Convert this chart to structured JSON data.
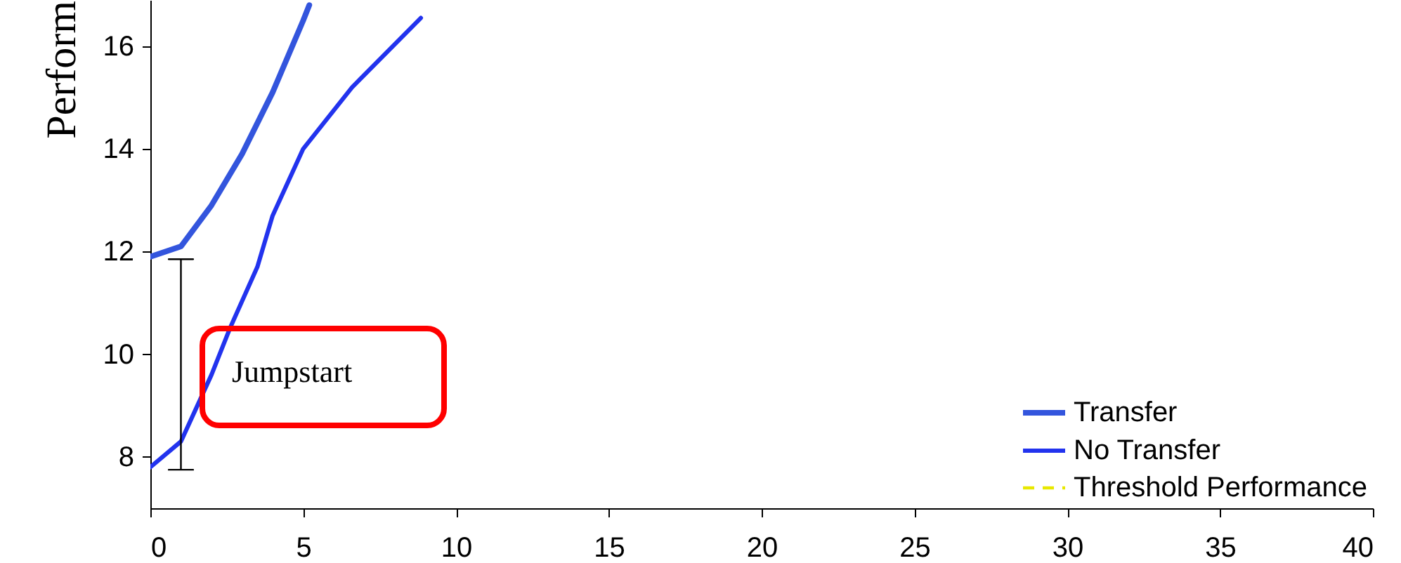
{
  "chart_data": {
    "type": "line",
    "ylabel": "Perform",
    "xlim": [
      0,
      40
    ],
    "xticks": [
      0,
      5,
      10,
      15,
      20,
      25,
      30,
      35,
      40
    ],
    "ylim": [
      7,
      16.9
    ],
    "yticks": [
      8,
      10,
      12,
      14,
      16
    ],
    "grid": false,
    "legend": "bottom right",
    "marker": "none",
    "annotations": [
      "Jumpstart"
    ],
    "series": [
      {
        "name": "Transfer",
        "color": "#3355dd",
        "line_style": "solid",
        "x": [
          0,
          1,
          2,
          3,
          4,
          5,
          5.2
        ],
        "values": [
          11.9,
          12.1,
          12.9,
          13.9,
          15.1,
          16.5,
          16.8
        ]
      },
      {
        "name": "No Transfer",
        "color": "#2233ee",
        "line_style": "solid",
        "x": [
          0,
          1,
          2,
          2.6,
          3.5,
          4,
          5,
          6.6,
          8.85
        ],
        "values": [
          7.8,
          8.3,
          9.6,
          10.5,
          11.7,
          12.7,
          14.0,
          15.2,
          16.55
        ]
      },
      {
        "name": "Threshold Performance",
        "color": "#e8e800",
        "line_style": "dashed"
      },
      {
        "color": "#000000",
        "line_style": "solid",
        "x": [
          0.6,
          1.4,
          1,
          1,
          0.6,
          1.4
        ],
        "values": [
          11.85,
          11.85,
          11.85,
          7.75,
          7.75,
          7.75
        ]
      }
    ]
  }
}
